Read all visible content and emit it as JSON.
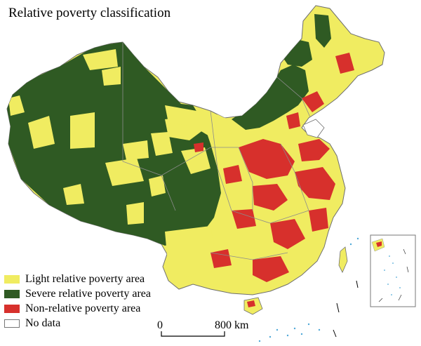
{
  "map": {
    "title": "Relative poverty classification",
    "colors": {
      "background": "#ffffff",
      "light": "#f0ec61",
      "severe": "#2f5a23",
      "non": "#d7302c",
      "boundary": "#8c8c8c",
      "water": "#4fa9d8"
    },
    "legend": [
      {
        "label": "Light relative poverty area",
        "color": "#f0ec61",
        "border": "#f0ec61"
      },
      {
        "label": "Severe relative poverty area",
        "color": "#2f5a23",
        "border": "#2f5a23"
      },
      {
        "label": "Non-relative poverty area",
        "color": "#d7302c",
        "border": "#d7302c"
      },
      {
        "label": "No data",
        "color": "#ffffff",
        "border": "#777777"
      }
    ],
    "scale_bar": {
      "start_label": "0",
      "end_label": "800 km"
    }
  }
}
